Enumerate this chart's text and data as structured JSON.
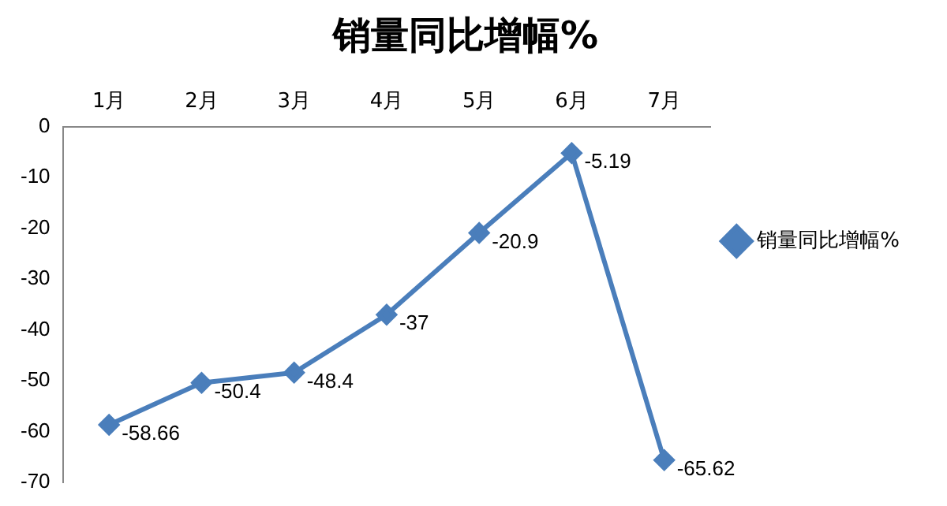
{
  "chart_data": {
    "type": "line",
    "title": "销量同比增幅%",
    "categories": [
      "1月",
      "2月",
      "3月",
      "4月",
      "5月",
      "6月",
      "7月"
    ],
    "series": [
      {
        "name": "销量同比增幅%",
        "color": "#4a7ebb",
        "values": [
          -58.66,
          -50.4,
          -48.4,
          -37,
          -20.9,
          -5.19,
          -65.62
        ]
      }
    ],
    "ylim": [
      -70,
      0
    ],
    "yticks": [
      0,
      -10,
      -20,
      -30,
      -40,
      -50,
      -60,
      -70
    ],
    "legend": "right",
    "marker": "diamond",
    "data_labels": true
  }
}
